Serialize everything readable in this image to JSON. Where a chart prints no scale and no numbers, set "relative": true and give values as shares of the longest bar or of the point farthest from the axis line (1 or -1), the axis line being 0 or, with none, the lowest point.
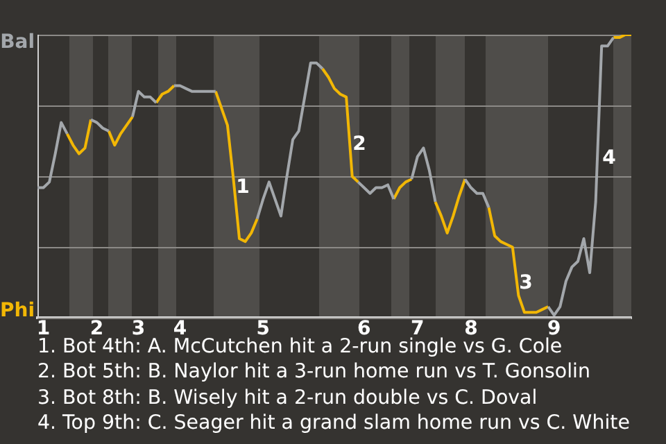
{
  "chart_data": {
    "type": "line",
    "relative": true,
    "grid": "y",
    "marker": "none",
    "line_style": "solid",
    "legend": false,
    "categories": [
      null,
      "1",
      null,
      null,
      null,
      null,
      null,
      null,
      null,
      null,
      "2",
      null,
      null,
      null,
      null,
      null,
      null,
      "3",
      null,
      null,
      null,
      null,
      null,
      null,
      "4",
      null,
      null,
      null,
      null,
      null,
      null,
      null,
      null,
      null,
      null,
      null,
      null,
      null,
      "5",
      null,
      null,
      null,
      null,
      null,
      null,
      null,
      null,
      null,
      null,
      null,
      null,
      null,
      null,
      null,
      null,
      "6",
      null,
      null,
      null,
      null,
      null,
      null,
      null,
      null,
      "7",
      null,
      null,
      null,
      null,
      null,
      null,
      null,
      null,
      "8",
      null,
      null,
      null,
      null,
      null,
      null,
      null,
      null,
      null,
      null,
      null,
      null,
      null,
      "9",
      null,
      null,
      null,
      null,
      null,
      null,
      null,
      null,
      null,
      null,
      null,
      null,
      null
    ],
    "series": [
      {
        "name": "Bal",
        "color": "#a3a7ab",
        "values": [
          0.46,
          0.46,
          0.48,
          0.58,
          0.69,
          0.65,
          null,
          null,
          null,
          0.7,
          0.69,
          0.67,
          0.66,
          null,
          null,
          null,
          0.71,
          0.8,
          0.78,
          0.78,
          0.76,
          null,
          null,
          0.82,
          0.82,
          0.81,
          0.8,
          0.8,
          0.8,
          0.8,
          0.8,
          null,
          null,
          null,
          null,
          null,
          null,
          0.35,
          0.42,
          0.48,
          0.42,
          0.36,
          0.5,
          0.63,
          0.66,
          0.78,
          0.9,
          0.9,
          0.88,
          null,
          null,
          null,
          null,
          null,
          0.48,
          0.46,
          0.44,
          0.46,
          0.46,
          0.47,
          0.42,
          null,
          null,
          0.49,
          0.57,
          0.6,
          0.52,
          0.41,
          null,
          null,
          null,
          null,
          0.49,
          0.46,
          0.44,
          0.44,
          0.39,
          null,
          null,
          null,
          null,
          null,
          null,
          null,
          null,
          null,
          0.04,
          0.01,
          0.04,
          0.13,
          0.18,
          0.2,
          0.28,
          0.16,
          0.41,
          0.96,
          0.96,
          0.99,
          null,
          null,
          null
        ]
      },
      {
        "name": "Phi",
        "color": "#f2b705",
        "values": [
          null,
          null,
          null,
          null,
          null,
          0.65,
          0.61,
          0.58,
          0.6,
          0.7,
          null,
          null,
          0.66,
          0.61,
          0.65,
          0.68,
          0.71,
          null,
          null,
          null,
          0.76,
          0.79,
          0.8,
          0.82,
          null,
          null,
          null,
          null,
          null,
          null,
          0.8,
          0.74,
          0.68,
          0.49,
          0.28,
          0.27,
          0.3,
          0.35,
          null,
          null,
          null,
          null,
          null,
          null,
          null,
          null,
          null,
          null,
          0.88,
          0.85,
          0.81,
          0.79,
          0.78,
          0.5,
          0.48,
          null,
          null,
          null,
          null,
          null,
          0.42,
          0.46,
          0.48,
          0.49,
          null,
          null,
          null,
          0.41,
          0.36,
          0.3,
          0.36,
          0.43,
          0.49,
          null,
          null,
          null,
          0.39,
          0.29,
          0.27,
          0.26,
          0.25,
          0.08,
          0.02,
          0.02,
          0.02,
          0.03,
          0.04,
          null,
          null,
          null,
          null,
          null,
          null,
          null,
          null,
          null,
          null,
          0.99,
          0.99,
          1.0,
          1
        ]
      }
    ],
    "annotations": [
      "1",
      "2",
      "3",
      "4",
      "1. Bot 4th: A. McCutchen hit a 2-run single vs G. Cole",
      "2. Bot 5th: B. Naylor hit a 3-run home run vs T. Gonsolin",
      "3. Bot 8th: B. Wisely hit a 2-run double vs C. Doval",
      "4. Top 9th: C. Seager hit a grand slam home run vs C. White"
    ]
  }
}
